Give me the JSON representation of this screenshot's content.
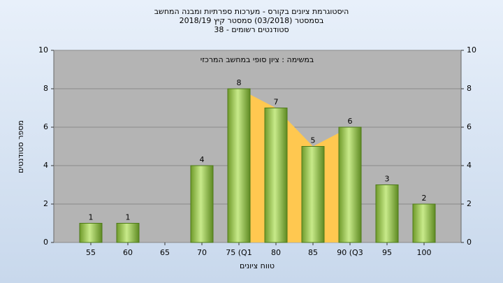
{
  "chart_data": {
    "type": "bar",
    "title": "היסטוגרמת ציונים בקורס - מערכות ספרתיות ומבנה המחשב",
    "subtitle": "בסמסטר  (03/2018)  סמסטר קיץ  2018/19",
    "subtitle2": "סטודנטים רשומים - 38",
    "annotation": "במשימה : ציון סופי במחשב המרכזי",
    "x_label": "טווח ציונים",
    "y_label": "מספר סטודנטים",
    "categories": [
      "55",
      "60",
      "65",
      "70",
      "75 (Q1",
      "80",
      "85",
      "90 (Q3",
      "95",
      "100"
    ],
    "values": [
      1,
      1,
      null,
      4,
      8,
      7,
      5,
      6,
      3,
      2
    ],
    "color": "#9acd4a",
    "ylim": [
      0,
      10
    ],
    "yticks": [
      0,
      2,
      4,
      6,
      8,
      10
    ],
    "y2lim": [
      0,
      10
    ],
    "y2ticks": [
      0,
      2,
      4,
      6,
      8,
      10
    ],
    "grid": true
  }
}
